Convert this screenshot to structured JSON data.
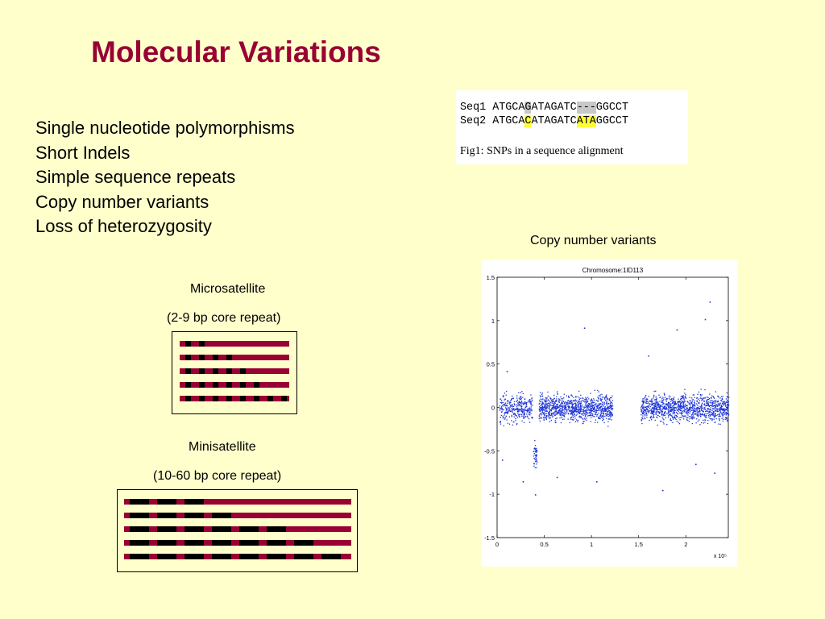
{
  "slide": {
    "title": "Molecular Variations",
    "bullets": [
      "Single nucleotide polymorphisms",
      "Short Indels",
      "Simple sequence repeats",
      "Copy number variants",
      "Loss of heterozygosity"
    ]
  },
  "figure1": {
    "seq1": {
      "name": "Seq1",
      "pre": "ATGCA",
      "snp": "G",
      "mid": "ATAGATC",
      "gap": "---",
      "post": "GGCCT"
    },
    "seq2": {
      "name": "Seq2",
      "pre": "ATGCA",
      "snp": "C",
      "mid": "ATAGATC",
      "ins": "ATA",
      "post": "GGCCT"
    },
    "caption": "Fig1: SNPs in a sequence alignment",
    "colors": {
      "gap_highlight": "#c8c8c8",
      "snp_highlight": "#ffff33"
    }
  },
  "cnv": {
    "label": "Copy number variants",
    "plot_title": "Chromosome:1ID113",
    "exponent_label": "x 10⁵"
  },
  "chart_data": {
    "type": "scatter",
    "title": "Chromosome:1ID113",
    "xlim": [
      0,
      2.45
    ],
    "ylim": [
      -1.5,
      1.5
    ],
    "x_ticks": [
      "0",
      "0.5",
      "1",
      "1.5",
      "2"
    ],
    "y_ticks": [
      "1.5",
      "1",
      "0.5",
      "0",
      "-0.5",
      "-1",
      "-1.5"
    ],
    "x_multiplier": "x 10⁵",
    "segments": [
      {
        "x_start": 0.02,
        "x_end": 0.37,
        "mean": 0.0,
        "spread": 0.14,
        "count": 330
      },
      {
        "x_start": 0.38,
        "x_end": 0.42,
        "mean": -0.55,
        "spread": 0.12,
        "count": 45
      },
      {
        "x_start": 0.44,
        "x_end": 1.22,
        "mean": 0.0,
        "spread": 0.13,
        "count": 1050
      },
      {
        "x_start": 1.52,
        "x_end": 2.45,
        "mean": 0.0,
        "spread": 0.14,
        "count": 1150
      }
    ],
    "outliers": [
      [
        0.92,
        0.92
      ],
      [
        1.6,
        0.6
      ],
      [
        1.9,
        0.9
      ],
      [
        2.25,
        1.22
      ],
      [
        2.2,
        1.02
      ],
      [
        0.27,
        -0.85
      ],
      [
        0.63,
        -0.8
      ],
      [
        2.3,
        -0.75
      ],
      [
        0.1,
        0.42
      ],
      [
        1.75,
        -0.95
      ],
      [
        0.4,
        -1.0
      ],
      [
        1.05,
        -0.85
      ],
      [
        0.05,
        -0.6
      ],
      [
        2.1,
        -0.65
      ]
    ],
    "point_color": "#1f35d6",
    "grid": false
  },
  "microsatellite": {
    "title": "Microsatellite",
    "subtitle": "(2-9 bp core repeat)",
    "repeat_counts": [
      2,
      4,
      5,
      6,
      8
    ]
  },
  "minisatellite": {
    "title": "Minisatellite",
    "subtitle": "(10-60 bp core repeat)",
    "repeat_counts": [
      3,
      4,
      6,
      7,
      8
    ]
  },
  "colors": {
    "title": "#990033",
    "strand": "#990033",
    "repeat": "#000000",
    "background": "#ffffcc"
  }
}
